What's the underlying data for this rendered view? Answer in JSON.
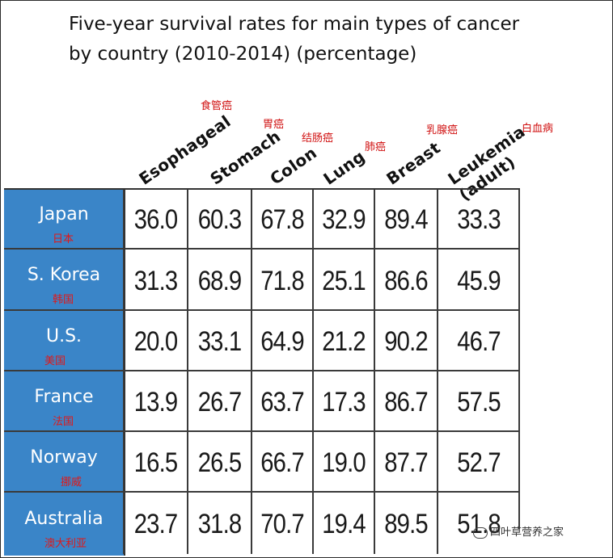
{
  "chart_data": {
    "type": "table",
    "title_line1": "Five-year survival rates for main types of cancer",
    "title_line2": "by country (2010-2014)  (percentage)",
    "columns": [
      {
        "en": "Esophageal",
        "cn": "食管癌"
      },
      {
        "en": "Stomach",
        "cn": "胃癌"
      },
      {
        "en": "Colon",
        "cn": "结肠癌"
      },
      {
        "en": "Lung",
        "cn": "肺癌"
      },
      {
        "en": "Breast",
        "cn": "乳腺癌"
      },
      {
        "en": "Leukemia\n(adult)",
        "cn": "白血病"
      }
    ],
    "rows": [
      {
        "country": "Japan",
        "cn": "日本",
        "values": [
          "36.0",
          "60.3",
          "67.8",
          "32.9",
          "89.4",
          "33.3"
        ]
      },
      {
        "country": "S. Korea",
        "cn": "韩国",
        "values": [
          "31.3",
          "68.9",
          "71.8",
          "25.1",
          "86.6",
          "45.9"
        ]
      },
      {
        "country": "U.S.",
        "cn": "美国",
        "values": [
          "20.0",
          "33.1",
          "64.9",
          "21.2",
          "90.2",
          "46.7"
        ]
      },
      {
        "country": "France",
        "cn": "法国",
        "values": [
          "13.9",
          "26.7",
          "63.7",
          "17.3",
          "86.7",
          "57.5"
        ]
      },
      {
        "country": "Norway",
        "cn": "挪威",
        "values": [
          "16.5",
          "26.5",
          "66.7",
          "19.0",
          "87.7",
          "52.7"
        ]
      },
      {
        "country": "Australia",
        "cn": "澳大利亚",
        "values": [
          "23.7",
          "31.8",
          "70.7",
          "19.4",
          "89.5",
          "51.8"
        ]
      }
    ]
  },
  "colors": {
    "country_bg": "#3a85c8",
    "chinese_label": "#e01818",
    "text": "#1a1a1a"
  },
  "watermark": {
    "icon": "wechat-icon",
    "text": "四叶草营养之家"
  }
}
